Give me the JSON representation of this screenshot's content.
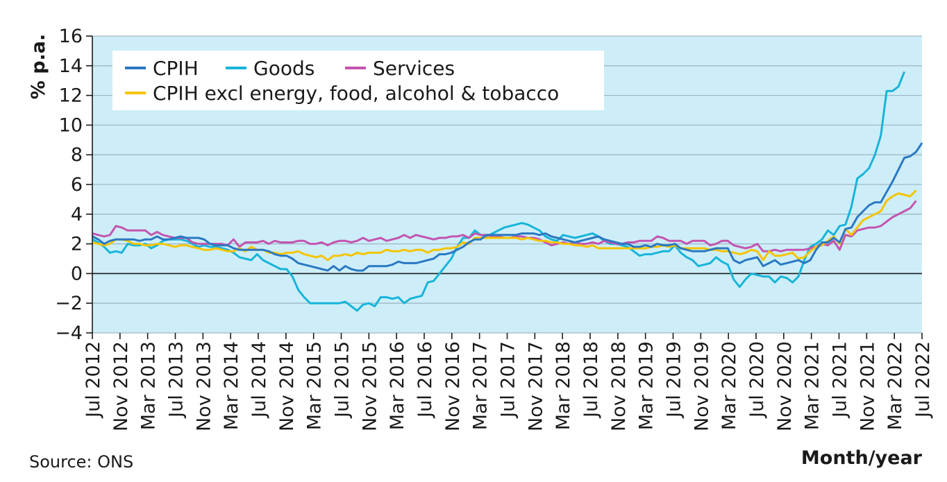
{
  "chart_data": {
    "type": "line",
    "title": "",
    "ylabel": "% p.a.",
    "xlabel": "Month/year",
    "source": "Source: ONS",
    "ylim": [
      -4,
      16
    ],
    "yticks": [
      -4,
      -2,
      0,
      2,
      4,
      6,
      8,
      10,
      12,
      14,
      16
    ],
    "ytick_labels": [
      "−4",
      "−2",
      "0",
      "2",
      "4",
      "6",
      "8",
      "10",
      "12",
      "14",
      "16"
    ],
    "x_start": "Jul 2012",
    "x_end": "Jul 2022",
    "xtick_labels": [
      "Jul 2012",
      "Nov 2012",
      "Mar 2013",
      "Jul 2013",
      "Nov 2013",
      "Mar 2014",
      "Jul 2014",
      "Nov 2014",
      "Mar 2015",
      "Jul 2015",
      "Nov 2015",
      "Mar 2016",
      "Jul 2016",
      "Nov 2016",
      "Mar 2017",
      "Jul 2017",
      "Nov 2017",
      "Mar 2018",
      "Jul 2018",
      "Nov 2018",
      "Mar 2019",
      "Jul 2019",
      "Nov 2019",
      "Mar 2020",
      "Jul 2020",
      "Nov 2020",
      "Mar 2021",
      "Jul 2021",
      "Nov 2021",
      "Mar 2022",
      "Jul 2022"
    ],
    "grid": true,
    "legend_position": "top-left",
    "background_color": "#cdeef9",
    "series": [
      {
        "name": "CPIH",
        "color": "#2a78c2",
        "values": [
          2.5,
          2.3,
          2.0,
          2.2,
          2.3,
          2.3,
          2.3,
          2.3,
          2.2,
          2.3,
          2.3,
          2.5,
          2.3,
          2.3,
          2.4,
          2.5,
          2.4,
          2.4,
          2.4,
          2.3,
          2.0,
          1.9,
          1.9,
          1.9,
          1.7,
          1.6,
          1.6,
          1.6,
          1.6,
          1.6,
          1.5,
          1.3,
          1.2,
          1.2,
          1.0,
          0.7,
          0.6,
          0.5,
          0.4,
          0.3,
          0.2,
          0.5,
          0.2,
          0.5,
          0.3,
          0.2,
          0.2,
          0.5,
          0.5,
          0.5,
          0.5,
          0.6,
          0.8,
          0.7,
          0.7,
          0.7,
          0.8,
          0.9,
          1.0,
          1.3,
          1.3,
          1.4,
          1.6,
          1.8,
          2.1,
          2.3,
          2.3,
          2.6,
          2.6,
          2.6,
          2.6,
          2.6,
          2.6,
          2.7,
          2.7,
          2.7,
          2.6,
          2.7,
          2.5,
          2.4,
          2.3,
          2.2,
          2.1,
          2.2,
          2.3,
          2.4,
          2.5,
          2.3,
          2.2,
          2.1,
          2.0,
          2.0,
          1.8,
          1.8,
          1.9,
          1.8,
          2.0,
          1.9,
          1.9,
          2.0,
          1.7,
          1.6,
          1.5,
          1.5,
          1.5,
          1.6,
          1.7,
          1.7,
          1.7,
          0.9,
          0.7,
          0.9,
          1.0,
          1.1,
          0.5,
          0.7,
          0.9,
          0.6,
          0.7,
          0.8,
          0.9,
          0.7,
          0.9,
          1.6,
          2.1,
          2.1,
          2.4,
          2.1,
          3.0,
          3.1,
          3.8,
          4.2,
          4.6,
          4.8,
          4.8,
          5.5,
          6.2,
          7.0,
          7.8,
          7.9,
          8.2,
          8.8
        ]
      },
      {
        "name": "Goods",
        "color": "#17b4d9",
        "values": [
          2.3,
          2.1,
          1.8,
          1.4,
          1.5,
          1.4,
          2.0,
          1.9,
          1.9,
          2.0,
          1.7,
          1.9,
          2.2,
          2.3,
          2.3,
          2.3,
          2.2,
          2.0,
          1.8,
          1.9,
          1.8,
          1.8,
          1.7,
          1.6,
          1.4,
          1.1,
          1.0,
          0.9,
          1.3,
          0.9,
          0.7,
          0.5,
          0.3,
          0.3,
          -0.2,
          -1.1,
          -1.6,
          -2.0,
          -2.0,
          -2.0,
          -2.0,
          -2.0,
          -2.0,
          -1.9,
          -2.2,
          -2.5,
          -2.1,
          -2.0,
          -2.2,
          -1.6,
          -1.6,
          -1.7,
          -1.6,
          -2.0,
          -1.7,
          -1.6,
          -1.5,
          -0.6,
          -0.5,
          0.0,
          0.5,
          1.0,
          1.8,
          2.4,
          2.4,
          2.9,
          2.6,
          2.5,
          2.7,
          2.9,
          3.1,
          3.2,
          3.3,
          3.4,
          3.3,
          3.1,
          2.9,
          2.5,
          2.3,
          2.2,
          2.6,
          2.5,
          2.4,
          2.5,
          2.6,
          2.7,
          2.5,
          2.2,
          2.0,
          2.0,
          1.9,
          1.8,
          1.5,
          1.2,
          1.3,
          1.3,
          1.4,
          1.5,
          1.5,
          1.9,
          1.4,
          1.1,
          0.9,
          0.5,
          0.6,
          0.7,
          1.1,
          0.8,
          0.6,
          -0.4,
          -0.9,
          -0.4,
          0.0,
          -0.1,
          -0.2,
          -0.2,
          -0.6,
          -0.2,
          -0.3,
          -0.6,
          -0.2,
          0.9,
          1.8,
          2.0,
          2.3,
          2.9,
          2.6,
          3.2,
          3.3,
          4.5,
          6.4,
          6.7,
          7.1,
          8.0,
          9.3,
          12.3,
          12.3,
          12.6,
          13.6
        ]
      },
      {
        "name": "Services",
        "color": "#c454b0",
        "values": [
          2.7,
          2.6,
          2.5,
          2.6,
          3.2,
          3.1,
          2.9,
          2.9,
          2.9,
          2.9,
          2.6,
          2.8,
          2.6,
          2.5,
          2.4,
          2.4,
          2.4,
          2.1,
          2.0,
          2.0,
          2.0,
          2.0,
          2.0,
          1.9,
          2.3,
          1.8,
          2.1,
          2.1,
          2.1,
          2.2,
          2.0,
          2.2,
          2.1,
          2.1,
          2.1,
          2.2,
          2.2,
          2.0,
          2.0,
          2.1,
          1.9,
          2.1,
          2.2,
          2.2,
          2.1,
          2.2,
          2.4,
          2.2,
          2.3,
          2.4,
          2.2,
          2.3,
          2.4,
          2.6,
          2.4,
          2.6,
          2.5,
          2.4,
          2.3,
          2.4,
          2.4,
          2.5,
          2.5,
          2.6,
          2.4,
          2.7,
          2.6,
          2.6,
          2.5,
          2.5,
          2.4,
          2.4,
          2.5,
          2.5,
          2.4,
          2.4,
          2.3,
          2.1,
          1.9,
          2.0,
          2.1,
          2.0,
          2.1,
          2.0,
          2.0,
          2.1,
          2.0,
          2.2,
          2.1,
          2.0,
          2.0,
          2.1,
          2.1,
          2.2,
          2.2,
          2.2,
          2.5,
          2.4,
          2.2,
          2.2,
          2.2,
          2.0,
          2.2,
          2.2,
          2.2,
          1.9,
          2.0,
          2.2,
          2.2,
          1.9,
          1.8,
          1.7,
          1.8,
          2.0,
          1.5,
          1.5,
          1.6,
          1.5,
          1.6,
          1.6,
          1.6,
          1.6,
          1.7,
          1.8,
          2.0,
          1.9,
          2.2,
          1.6,
          2.6,
          2.5,
          2.9,
          3.0,
          3.1,
          3.1,
          3.2,
          3.5,
          3.8,
          4.0,
          4.2,
          4.4,
          4.9
        ]
      },
      {
        "name": "CPIH excl energy, food, alcohol & tobacco",
        "color": "#f5c400",
        "values": [
          2.1,
          2.0,
          1.9,
          2.0,
          2.3,
          2.3,
          2.2,
          2.0,
          2.0,
          1.9,
          1.9,
          2.0,
          2.0,
          1.9,
          1.8,
          1.9,
          1.9,
          1.8,
          1.7,
          1.6,
          1.6,
          1.7,
          1.6,
          1.5,
          1.5,
          1.7,
          1.5,
          1.8,
          1.6,
          1.6,
          1.4,
          1.4,
          1.3,
          1.4,
          1.4,
          1.5,
          1.3,
          1.2,
          1.1,
          1.2,
          0.9,
          1.2,
          1.2,
          1.3,
          1.2,
          1.4,
          1.3,
          1.4,
          1.4,
          1.4,
          1.6,
          1.5,
          1.5,
          1.6,
          1.5,
          1.6,
          1.6,
          1.4,
          1.6,
          1.6,
          1.7,
          1.7,
          1.8,
          2.1,
          2.0,
          2.4,
          2.4,
          2.4,
          2.4,
          2.4,
          2.4,
          2.4,
          2.4,
          2.3,
          2.4,
          2.3,
          2.2,
          2.2,
          2.1,
          2.1,
          2.0,
          2.0,
          1.9,
          1.9,
          1.8,
          1.9,
          1.7,
          1.7,
          1.7,
          1.7,
          1.7,
          1.7,
          1.7,
          1.7,
          1.7,
          1.8,
          1.8,
          1.9,
          1.8,
          1.9,
          1.7,
          1.7,
          1.7,
          1.7,
          1.7,
          1.6,
          1.6,
          1.5,
          1.5,
          1.4,
          1.3,
          1.4,
          1.6,
          1.5,
          0.9,
          1.5,
          1.2,
          1.2,
          1.3,
          1.4,
          1.0,
          1.1,
          1.5,
          1.8,
          1.9,
          2.2,
          2.5,
          2.0,
          3.0,
          2.6,
          3.1,
          3.6,
          3.8,
          4.0,
          4.2,
          4.9,
          5.2,
          5.4,
          5.3,
          5.2,
          5.6
        ]
      }
    ]
  }
}
